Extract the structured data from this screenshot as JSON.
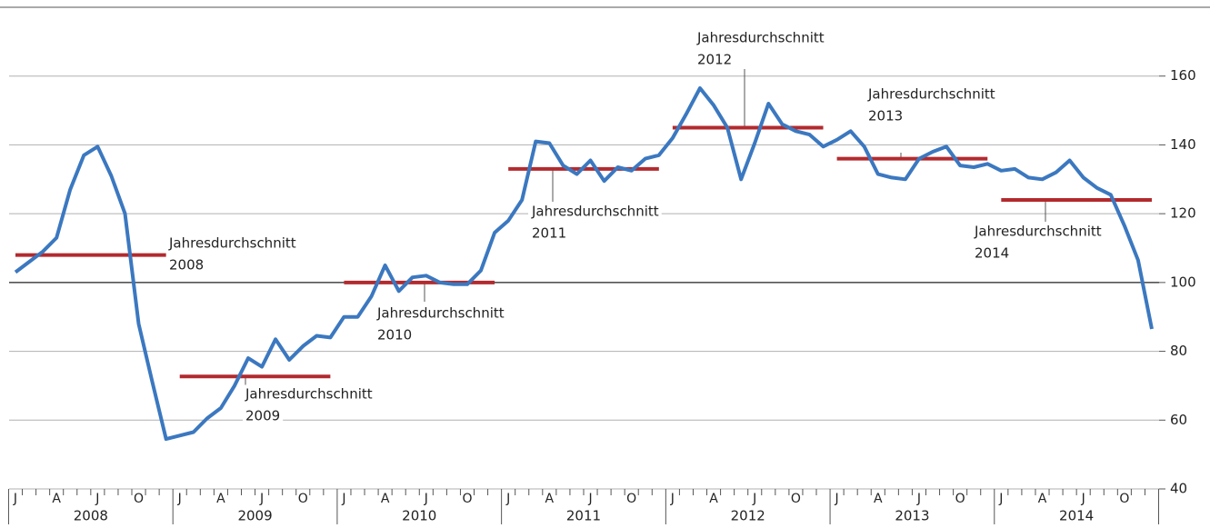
{
  "chart_data": {
    "type": "line",
    "categories": [
      "J",
      null,
      null,
      "A",
      null,
      null,
      "J",
      null,
      null,
      "O",
      null,
      null,
      "J",
      null,
      null,
      "A",
      null,
      null,
      "J",
      null,
      null,
      "O",
      null,
      null,
      "J",
      null,
      null,
      "A",
      null,
      null,
      "J",
      null,
      null,
      "O",
      null,
      null,
      "J",
      null,
      null,
      "A",
      null,
      null,
      "J",
      null,
      null,
      "O",
      null,
      null,
      "J",
      null,
      null,
      "A",
      null,
      null,
      "J",
      null,
      null,
      "O",
      null,
      null,
      "J",
      null,
      null,
      "A",
      null,
      null,
      "J",
      null,
      null,
      "O",
      null,
      null,
      "J",
      null,
      null,
      "A",
      null,
      null,
      "J",
      null,
      null,
      "O",
      null,
      null
    ],
    "years": [
      "2008",
      "2009",
      "2010",
      "2011",
      "2012",
      "2013",
      "2014"
    ],
    "series": [
      {
        "color": "#3b78c0",
        "values": [
          103,
          106,
          109,
          113,
          127,
          137,
          139.5,
          131,
          120,
          88,
          71,
          54.5,
          55.5,
          56.5,
          60.5,
          63.5,
          70,
          78,
          75.5,
          83.5,
          77.5,
          81.5,
          84.5,
          84,
          90,
          90,
          96,
          105,
          97.5,
          101.5,
          102,
          100,
          99.5,
          99.5,
          103.5,
          114.5,
          118,
          124,
          141,
          140.5,
          134,
          131.5,
          135.5,
          129.5,
          133.5,
          132.5,
          136,
          137,
          142,
          149,
          156.5,
          151.5,
          145,
          130,
          140.5,
          152,
          146,
          144,
          143,
          139.5,
          141.5,
          144,
          139.5,
          131.5,
          130.5,
          130,
          136,
          138,
          139.5,
          134,
          133.5,
          134.5,
          132.5,
          133,
          130.5,
          130,
          132,
          135.5,
          130.5,
          127.5,
          125.5,
          116.5,
          106.5,
          86.5
        ]
      }
    ],
    "averages": {
      "color": "#b22a2e",
      "items": [
        {
          "label": [
            "Jahresdurchschnitt",
            "2008"
          ],
          "value": 108
        },
        {
          "label": [
            "Jahresdurchschnitt",
            "2009"
          ],
          "value": 72.7
        },
        {
          "label": [
            "Jahresdurchschnitt",
            "2010"
          ],
          "value": 100
        },
        {
          "label": [
            "Jahresdurchschnitt",
            "2011"
          ],
          "value": 133
        },
        {
          "label": [
            "Jahresdurchschnitt",
            "2012"
          ],
          "value": 145
        },
        {
          "label": [
            "Jahresdurchschnitt",
            "2013"
          ],
          "value": 136
        },
        {
          "label": [
            "Jahresdurchschnitt",
            "2014"
          ],
          "value": 124
        }
      ]
    },
    "reference_line": 100,
    "ylim": [
      40,
      180
    ],
    "yticks": [
      40,
      60,
      80,
      100,
      120,
      140,
      160
    ],
    "grid": true
  }
}
